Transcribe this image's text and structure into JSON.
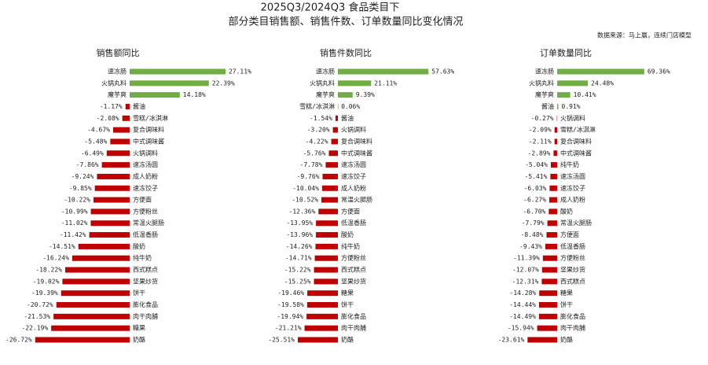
{
  "title": "2025Q3/2024Q3 食品类目下",
  "subtitle": "部分类目销售额、销售件数、订单数量同比变化情况",
  "source": "数据来源：马上赢，连续门店模型",
  "chart_data": [
    {
      "type": "bar",
      "orientation": "horizontal",
      "title": "销售额同比",
      "positive_color": "#70ad47",
      "negative_color": "#c00000",
      "xlim": [
        -30,
        30
      ],
      "categories": [
        "速冻肠",
        "火锅丸料",
        "魔芋爽",
        "酱油",
        "雪糕/冰淇淋",
        "复合调味料",
        "中式调味酱",
        "火锅调料",
        "速冻汤圆",
        "成人奶粉",
        "速冻饺子",
        "方便面",
        "方便粉丝",
        "常温火腿肠",
        "低温香肠",
        "酸奶",
        "纯牛奶",
        "西式糕点",
        "坚果炒货",
        "饼干",
        "膨化食品",
        "肉干肉脯",
        "糖果",
        "奶酪"
      ],
      "values": [
        27.11,
        22.39,
        14.18,
        -1.17,
        -2.08,
        -4.67,
        -5.48,
        -6.49,
        -7.86,
        -9.24,
        -9.85,
        -10.22,
        -10.99,
        -11.02,
        -11.42,
        -14.51,
        -16.24,
        -18.22,
        -19.02,
        -19.39,
        -20.72,
        -21.53,
        -22.19,
        -26.72
      ],
      "value_labels": [
        "27.11%",
        "22.39%",
        "14.18%",
        "-1.17%",
        "-2.08%",
        "-4.67%",
        "-5.48%",
        "-6.49%",
        "-7.86%",
        "-9.24%",
        "-9.85%",
        "-10.22%",
        "-10.99%",
        "-11.02%",
        "-11.42%",
        "-14.51%",
        "-16.24%",
        "-18.22%",
        "-19.02%",
        "-19.39%",
        "-20.72%",
        "-21.53%",
        "-22.19%",
        "-26.72%"
      ]
    },
    {
      "type": "bar",
      "orientation": "horizontal",
      "title": "销售件数同比",
      "positive_color": "#70ad47",
      "negative_color": "#c00000",
      "xlim": [
        -50,
        90
      ],
      "categories": [
        "速冻肠",
        "火锅丸料",
        "魔芋爽",
        "雪糕/冰淇淋",
        "酱油",
        "火锅调料",
        "复合调味料",
        "中式调味酱",
        "速冻汤圆",
        "速冻饺子",
        "成人奶粉",
        "常温火腿肠",
        "方便面",
        "低温香肠",
        "酸奶",
        "纯牛奶",
        "方便粉丝",
        "西式糕点",
        "坚果炒货",
        "糖果",
        "饼干",
        "膨化食品",
        "肉干肉脯",
        "奶酪"
      ],
      "values": [
        57.63,
        21.11,
        9.39,
        0.06,
        -1.54,
        -3.2,
        -4.22,
        -5.76,
        -7.78,
        -9.76,
        -10.04,
        -10.52,
        -12.36,
        -13.95,
        -13.96,
        -14.26,
        -14.71,
        -15.22,
        -15.25,
        -19.46,
        -19.58,
        -19.94,
        -21.21,
        -25.51
      ],
      "value_labels": [
        "57.63%",
        "21.11%",
        "9.39%",
        "0.06%",
        "-1.54%",
        "-3.20%",
        "-4.22%",
        "-5.76%",
        "-7.78%",
        "-9.76%",
        "-10.04%",
        "-10.52%",
        "-12.36%",
        "-13.95%",
        "-13.96%",
        "-14.26%",
        "-14.71%",
        "-15.22%",
        "-15.25%",
        "-19.46%",
        "-19.58%",
        "-19.94%",
        "-21.21%",
        "-25.51%"
      ]
    },
    {
      "type": "bar",
      "orientation": "horizontal",
      "title": "订单数量同比",
      "positive_color": "#70ad47",
      "negative_color": "#c00000",
      "xlim": [
        -62,
        107
      ],
      "categories": [
        "速冻肠",
        "火锅丸料",
        "魔芋爽",
        "酱油",
        "火锅调料",
        "雪糕/冰淇淋",
        "复合调味料",
        "中式调味酱",
        "纯牛奶",
        "速冻汤圆",
        "速冻饺子",
        "成人奶粉",
        "酸奶",
        "常温火腿肠",
        "方便面",
        "低温香肠",
        "方便粉丝",
        "坚果炒货",
        "西式糕点",
        "糖果",
        "饼干",
        "膨化食品",
        "肉干肉脯",
        "奶酪"
      ],
      "values": [
        69.36,
        24.48,
        10.41,
        0.91,
        -0.27,
        -2.09,
        -2.11,
        -2.89,
        -5.04,
        -5.41,
        -6.03,
        -6.27,
        -6.7,
        -7.79,
        -8.48,
        -9.43,
        -11.39,
        -12.07,
        -12.31,
        -14.28,
        -14.44,
        -14.49,
        -15.94,
        -23.61
      ],
      "value_labels": [
        "69.36%",
        "24.48%",
        "10.41%",
        "0.91%",
        "-0.27%",
        "-2.09%",
        "-2.11%",
        "-2.89%",
        "-5.04%",
        "-5.41%",
        "-6.03%",
        "-6.27%",
        "-6.70%",
        "-7.79%",
        "-8.48%",
        "-9.43%",
        "-11.39%",
        "-12.07%",
        "-12.31%",
        "-14.28%",
        "-14.44%",
        "-14.49%",
        "-15.94%",
        "-23.61%"
      ]
    }
  ]
}
